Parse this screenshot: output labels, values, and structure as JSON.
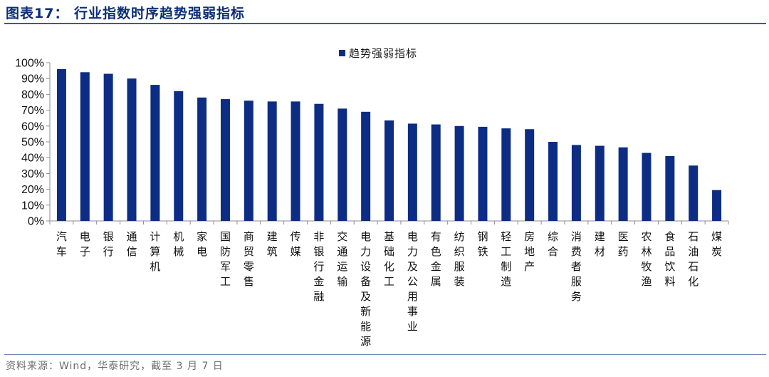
{
  "header": {
    "title": "图表17：  行业指数时序趋势强弱指标"
  },
  "footer": {
    "source": "资料来源：Wind，华泰研究，截至 3 月 7 日"
  },
  "colors": {
    "bar": "#0c2d83",
    "title": "#0b2f74",
    "rule": "#3c5a8f"
  },
  "chart_data": {
    "type": "bar",
    "title": "",
    "xlabel": "",
    "ylabel": "",
    "ylim": [
      0,
      100
    ],
    "y_ticks": [
      "0%",
      "10%",
      "20%",
      "30%",
      "40%",
      "50%",
      "60%",
      "70%",
      "80%",
      "90%",
      "100%"
    ],
    "legend_position": "top",
    "grid": false,
    "categories": [
      "汽车",
      "电子",
      "银行",
      "通信",
      "计算机",
      "机械",
      "家电",
      "国防军工",
      "商贸零售",
      "建筑",
      "传媒",
      "非银行金融",
      "交通运输",
      "电力设备及新能源",
      "基础化工",
      "电力及公用事业",
      "有色金属",
      "纺织服装",
      "钢铁",
      "轻工制造",
      "房地产",
      "综合",
      "消费者服务",
      "建材",
      "医药",
      "农林牧渔",
      "食品饮料",
      "石油石化",
      "煤炭"
    ],
    "series": [
      {
        "name": "趋势强弱指标",
        "values": [
          96,
          94,
          93,
          90,
          86,
          82,
          78,
          77,
          76,
          75.5,
          75.5,
          74,
          71,
          69,
          63.5,
          61.5,
          61,
          60,
          59.5,
          58.5,
          58,
          50,
          48,
          47.5,
          46.5,
          43,
          41,
          35,
          19.5
        ]
      }
    ]
  }
}
